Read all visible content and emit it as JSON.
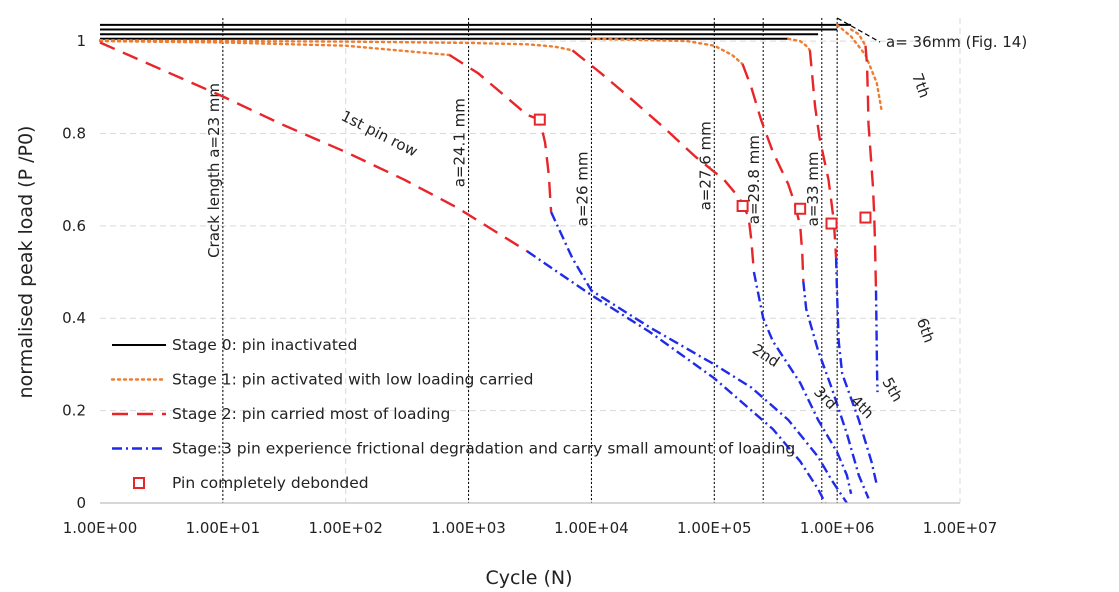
{
  "chart_data": {
    "type": "line",
    "x_scale": "log",
    "xlabel": "Cycle (N)",
    "ylabel": "normalised peak load (P /P0)",
    "xlim": [
      1,
      10000000
    ],
    "ylim": [
      0,
      1.05
    ],
    "x_ticks": [
      1,
      10,
      100,
      1000,
      10000,
      100000,
      1000000,
      10000000
    ],
    "x_tick_labels": [
      "1.00E+00",
      "1.00E+01",
      "1.00E+02",
      "1.00E+03",
      "1.00E+04",
      "1.00E+05",
      "1.00E+06",
      "1.00E+07"
    ],
    "y_ticks": [
      0,
      0.2,
      0.4,
      0.6,
      0.8,
      1
    ],
    "y_tick_labels": [
      "0",
      "0.2",
      "0.4",
      "0.6",
      "0.8",
      "1"
    ],
    "grid": true,
    "legend": {
      "placement": "bottom-left",
      "entries": [
        {
          "series": "stage0",
          "label": "Stage 0: pin inactivated"
        },
        {
          "series": "stage1",
          "label": "Stage 1: pin activated with low loading carried"
        },
        {
          "series": "stage2",
          "label": "Stage 2: pin carried most of loading"
        },
        {
          "series": "stage3",
          "label": "Stage:3 pin experience frictional degradation and carry small amount of loading"
        },
        {
          "series": "debond",
          "label": "Pin completely debonded"
        }
      ]
    },
    "styles": {
      "stage0": {
        "color": "#000000",
        "dash": ""
      },
      "stage1": {
        "color": "#ED7D31",
        "dash": "2,4"
      },
      "stage2": {
        "color": "#E8262A",
        "dash": "16,9"
      },
      "stage3": {
        "color": "#1F2BE8",
        "dash": "10,4,2,4"
      },
      "debond": {
        "color": "#E8262A"
      }
    },
    "series": [
      {
        "stage": "stage0",
        "points": [
          [
            1,
            1.035
          ],
          [
            1300000,
            1.035
          ]
        ]
      },
      {
        "stage": "stage0",
        "points": [
          [
            1,
            1.025
          ],
          [
            1000000,
            1.025
          ]
        ]
      },
      {
        "stage": "stage0",
        "points": [
          [
            1,
            1.015
          ],
          [
            700000,
            1.015
          ]
        ]
      },
      {
        "stage": "stage0",
        "points": [
          [
            1,
            1.005
          ],
          [
            400000,
            1.005
          ]
        ]
      },
      {
        "stage": "stage1",
        "points": [
          [
            1,
            1
          ],
          [
            10,
            0.997
          ],
          [
            100,
            0.99
          ],
          [
            700,
            0.97
          ]
        ]
      },
      {
        "stage": "stage1",
        "points": [
          [
            1,
            1.002
          ],
          [
            10,
            1.0
          ],
          [
            100,
            0.999
          ],
          [
            1000,
            0.996
          ],
          [
            3000,
            0.993
          ],
          [
            5000,
            0.988
          ],
          [
            7000,
            0.98
          ]
        ]
      },
      {
        "stage": "stage1",
        "points": [
          [
            10000,
            1.005
          ],
          [
            60000,
            1.0
          ],
          [
            100000,
            0.99
          ],
          [
            140000,
            0.97
          ],
          [
            170000,
            0.95
          ]
        ]
      },
      {
        "stage": "stage1",
        "points": [
          [
            400000,
            1.005
          ],
          [
            500000,
            1.0
          ],
          [
            560000,
            0.99
          ],
          [
            600000,
            0.98
          ]
        ]
      },
      {
        "stage": "stage1",
        "points": [
          [
            1000000,
            1.035
          ],
          [
            1300000,
            1.01
          ],
          [
            1700000,
            0.97
          ],
          [
            2100000,
            0.91
          ],
          [
            2300000,
            0.85
          ]
        ]
      },
      {
        "stage": "stage1",
        "points": [
          [
            1300000,
            1.025
          ],
          [
            1500000,
            1.015
          ],
          [
            1700000,
            0.99
          ]
        ]
      },
      {
        "stage": "stage2",
        "points": [
          [
            1,
            0.997
          ],
          [
            10,
            0.88
          ],
          [
            30,
            0.82
          ],
          [
            100,
            0.76
          ],
          [
            300,
            0.7
          ],
          [
            800,
            0.64
          ],
          [
            3000,
            0.545
          ]
        ]
      },
      {
        "stage": "stage2",
        "points": [
          [
            700,
            0.97
          ],
          [
            1200,
            0.93
          ],
          [
            2000,
            0.88
          ],
          [
            3000,
            0.84
          ],
          [
            3800,
            0.83
          ],
          [
            4200,
            0.78
          ],
          [
            4500,
            0.71
          ],
          [
            4700,
            0.63
          ]
        ]
      },
      {
        "stage": "stage2",
        "points": [
          [
            7000,
            0.98
          ],
          [
            12000,
            0.93
          ],
          [
            20000,
            0.88
          ],
          [
            40000,
            0.81
          ],
          [
            70000,
            0.75
          ],
          [
            120000,
            0.7
          ],
          [
            160000,
            0.66
          ],
          [
            190000,
            0.62
          ],
          [
            200000,
            0.57
          ],
          [
            210000,
            0.5
          ]
        ]
      },
      {
        "stage": "stage2",
        "points": [
          [
            170000,
            0.95
          ],
          [
            200000,
            0.9
          ],
          [
            240000,
            0.83
          ],
          [
            300000,
            0.76
          ],
          [
            400000,
            0.69
          ],
          [
            450000,
            0.65
          ],
          [
            500000,
            0.6
          ],
          [
            520000,
            0.54
          ],
          [
            530000,
            0.48
          ]
        ]
      },
      {
        "stage": "stage2",
        "points": [
          [
            600000,
            0.98
          ],
          [
            620000,
            0.94
          ],
          [
            660000,
            0.86
          ],
          [
            720000,
            0.79
          ],
          [
            850000,
            0.7
          ],
          [
            900000,
            0.65
          ],
          [
            940000,
            0.61
          ],
          [
            960000,
            0.57
          ],
          [
            980000,
            0.53
          ]
        ]
      },
      {
        "stage": "stage2",
        "points": [
          [
            1700000,
            0.99
          ],
          [
            1750000,
            0.95
          ],
          [
            1780000,
            0.88
          ],
          [
            1800000,
            0.82
          ],
          [
            1870000,
            0.76
          ],
          [
            1950000,
            0.69
          ],
          [
            2000000,
            0.63
          ],
          [
            2030000,
            0.57
          ],
          [
            2050000,
            0.52
          ],
          [
            2070000,
            0.46
          ]
        ]
      },
      {
        "stage": "stage3",
        "points": [
          [
            3000,
            0.545
          ],
          [
            10000,
            0.45
          ],
          [
            30000,
            0.37
          ],
          [
            100000,
            0.27
          ],
          [
            300000,
            0.16
          ],
          [
            500000,
            0.09
          ],
          [
            700000,
            0.03
          ],
          [
            800000,
            0.0
          ]
        ]
      },
      {
        "stage": "stage3",
        "points": [
          [
            4700,
            0.63
          ],
          [
            7000,
            0.53
          ],
          [
            10000,
            0.46
          ],
          [
            30000,
            0.38
          ],
          [
            100000,
            0.3
          ],
          [
            200000,
            0.25
          ],
          [
            400000,
            0.18
          ],
          [
            700000,
            0.1
          ],
          [
            900000,
            0.05
          ],
          [
            1200000,
            0.0
          ]
        ]
      },
      {
        "stage": "stage3",
        "points": [
          [
            210000,
            0.5
          ],
          [
            250000,
            0.4
          ],
          [
            300000,
            0.35
          ],
          [
            500000,
            0.26
          ],
          [
            700000,
            0.18
          ],
          [
            1000000,
            0.11
          ],
          [
            1200000,
            0.06
          ],
          [
            1300000,
            0.02
          ]
        ]
      },
      {
        "stage": "stage3",
        "points": [
          [
            530000,
            0.48
          ],
          [
            560000,
            0.42
          ],
          [
            700000,
            0.33
          ],
          [
            900000,
            0.25
          ],
          [
            1200000,
            0.15
          ],
          [
            1500000,
            0.06
          ],
          [
            1800000,
            0.01
          ]
        ]
      },
      {
        "stage": "stage3",
        "points": [
          [
            980000,
            0.53
          ],
          [
            1000000,
            0.45
          ],
          [
            1030000,
            0.35
          ],
          [
            1100000,
            0.28
          ],
          [
            1500000,
            0.18
          ],
          [
            1900000,
            0.09
          ],
          [
            2100000,
            0.04
          ]
        ]
      },
      {
        "stage": "stage3",
        "points": [
          [
            2070000,
            0.46
          ],
          [
            2090000,
            0.38
          ],
          [
            2110000,
            0.29
          ],
          [
            2130000,
            0.24
          ]
        ]
      }
    ],
    "debond_points": [
      [
        3800,
        0.83
      ],
      [
        170000,
        0.643
      ],
      [
        500000,
        0.637
      ],
      [
        900000,
        0.605
      ],
      [
        1700000,
        0.618
      ]
    ],
    "vertical_lines": [
      {
        "x": 10,
        "label": "Crack length a=23 mm",
        "label_y": 0.72
      },
      {
        "x": 1000,
        "label": "a=24.1 mm",
        "label_y": 0.78
      },
      {
        "x": 10000,
        "label": "a=26 mm",
        "label_y": 0.68
      },
      {
        "x": 100000,
        "label": "a=27.6 mm",
        "label_y": 0.73
      },
      {
        "x": 250000,
        "label": "a=29.8 mm",
        "label_y": 0.7
      },
      {
        "x": 750000,
        "label": "a=33 mm",
        "label_y": 0.68
      },
      {
        "x": 1000000,
        "label": "",
        "label_y": 0
      }
    ],
    "annotations": [
      {
        "text": "a= 36mm (Fig. 14)",
        "x": 2500000,
        "y": 1.0,
        "angle": 0
      },
      {
        "text": "1st pin row",
        "x": 180,
        "y": 0.79,
        "angle": 27
      },
      {
        "text": "2nd",
        "x": 250000,
        "y": 0.31,
        "angle": 33
      },
      {
        "text": "3rd",
        "x": 750000,
        "y": 0.22,
        "angle": 45
      },
      {
        "text": "4th",
        "x": 1500000,
        "y": 0.2,
        "angle": 45
      },
      {
        "text": "5th",
        "x": 2600000,
        "y": 0.24,
        "angle": 60
      },
      {
        "text": "6th",
        "x": 4800000,
        "y": 0.37,
        "angle": 70
      },
      {
        "text": "7th",
        "x": 4400000,
        "y": 0.9,
        "angle": 70
      }
    ]
  }
}
